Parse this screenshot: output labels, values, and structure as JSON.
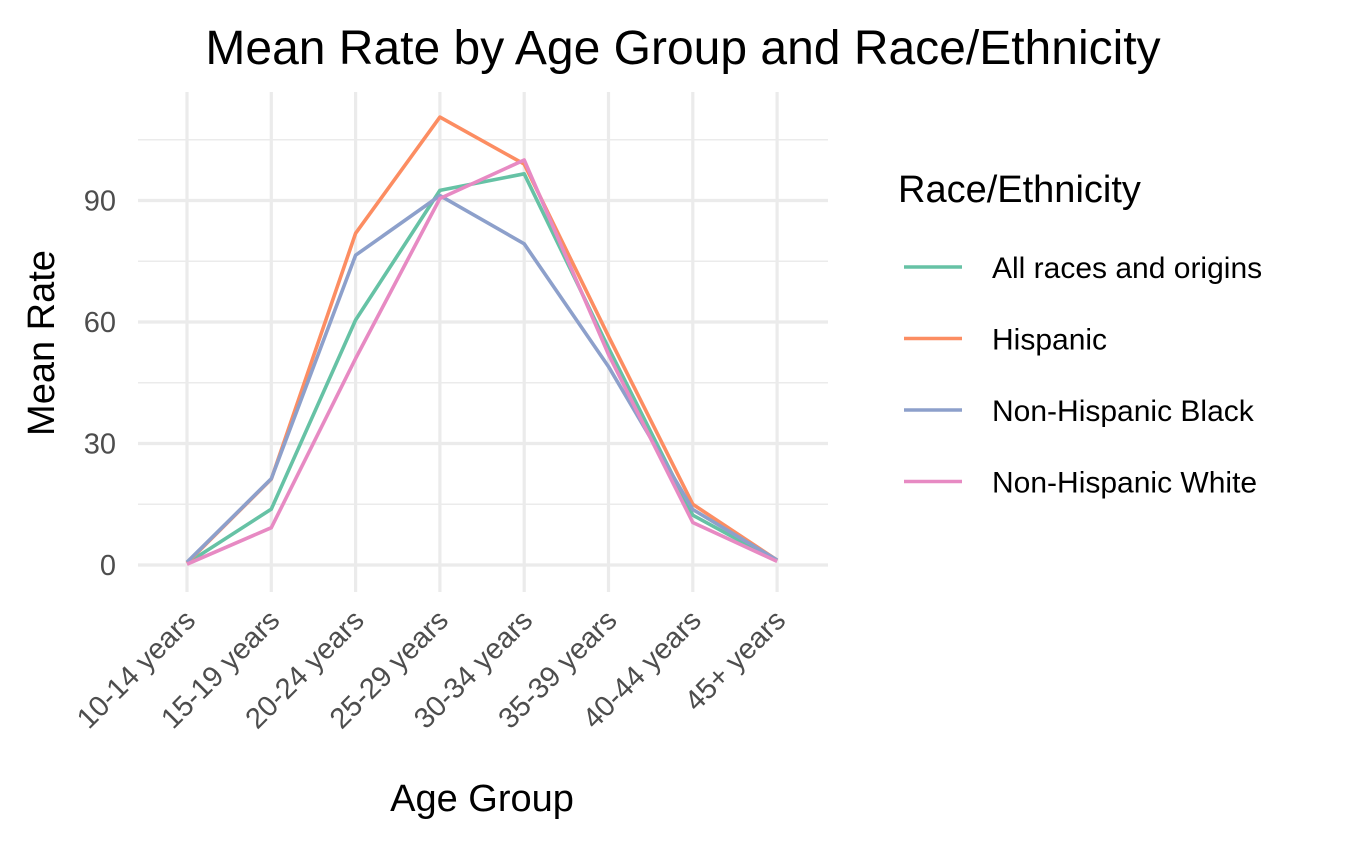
{
  "chart_data": {
    "type": "line",
    "title": "Mean Rate by Age Group and Race/Ethnicity",
    "xlabel": "Age Group",
    "ylabel": "Mean Rate",
    "categories": [
      "10-14 years",
      "15-19 years",
      "20-24 years",
      "25-29 years",
      "30-34 years",
      "35-39 years",
      "40-44 years",
      "45+ years"
    ],
    "ylim": [
      -7,
      114
    ],
    "yticks": [
      0,
      30,
      60,
      90
    ],
    "grid": true,
    "legend": {
      "title": "Race/Ethnicity",
      "position": "right"
    },
    "series": [
      {
        "name": "All races and origins",
        "color": "#66c2a5",
        "values": [
          0.4,
          13.8,
          60.5,
          92.5,
          96.6,
          53.6,
          12.3,
          1.0
        ]
      },
      {
        "name": "Hispanic",
        "color": "#fc8d62",
        "values": [
          0.5,
          21.2,
          81.9,
          110.6,
          99.0,
          56.5,
          15.0,
          1.2
        ]
      },
      {
        "name": "Non-Hispanic Black",
        "color": "#8da0cb",
        "values": [
          0.7,
          21.3,
          76.5,
          91.2,
          79.3,
          49.0,
          13.7,
          1.2
        ]
      },
      {
        "name": "Non-Hispanic White",
        "color": "#e78ac3",
        "values": [
          0.2,
          9.2,
          51.0,
          90.5,
          100.0,
          52.0,
          10.5,
          0.9
        ]
      }
    ]
  }
}
